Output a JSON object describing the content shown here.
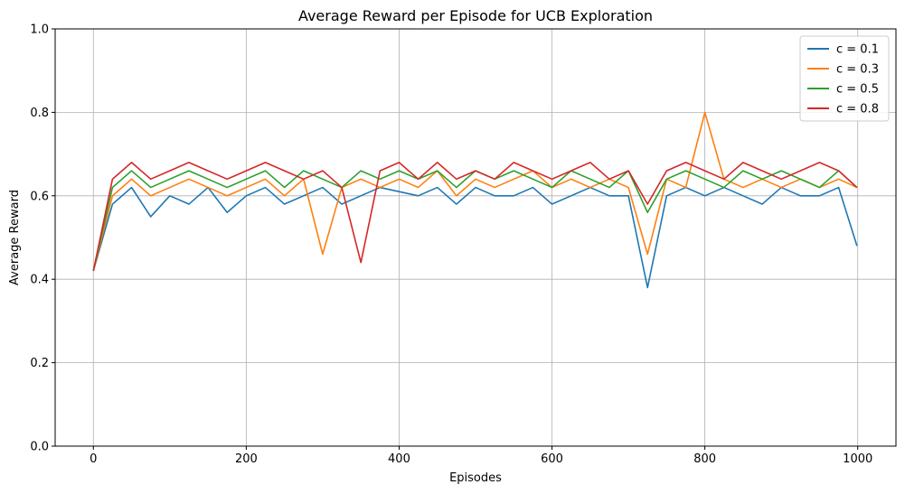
{
  "chart_data": {
    "type": "line",
    "title": "Average Reward per Episode for UCB Exploration",
    "xlabel": "Episodes",
    "ylabel": "Average Reward",
    "xlim": [
      -50,
      1050
    ],
    "ylim": [
      0,
      1.0
    ],
    "x_ticks": [
      0,
      200,
      400,
      600,
      800,
      1000
    ],
    "y_ticks": [
      0.0,
      0.2,
      0.4,
      0.6,
      0.8,
      1.0
    ],
    "x_tick_labels": [
      "0",
      "200",
      "400",
      "600",
      "800",
      "1000"
    ],
    "y_tick_labels": [
      "0.0",
      "0.2",
      "0.4",
      "0.6",
      "0.8",
      "1.0"
    ],
    "grid": true,
    "legend_position": "top-right",
    "x": [
      0,
      25,
      50,
      75,
      100,
      125,
      150,
      175,
      200,
      225,
      250,
      275,
      300,
      325,
      350,
      375,
      400,
      425,
      450,
      475,
      500,
      525,
      550,
      575,
      600,
      625,
      650,
      675,
      700,
      725,
      750,
      775,
      800,
      825,
      850,
      875,
      900,
      925,
      950,
      975,
      999
    ],
    "series": [
      {
        "name": "c = 0.1",
        "color": "#1f77b4",
        "values": [
          0.42,
          0.58,
          0.62,
          0.55,
          0.6,
          0.58,
          0.62,
          0.56,
          0.6,
          0.62,
          0.58,
          0.6,
          0.62,
          0.58,
          0.6,
          0.62,
          0.61,
          0.6,
          0.62,
          0.58,
          0.62,
          0.6,
          0.6,
          0.62,
          0.58,
          0.6,
          0.62,
          0.6,
          0.6,
          0.38,
          0.6,
          0.62,
          0.6,
          0.62,
          0.6,
          0.58,
          0.62,
          0.6,
          0.6,
          0.62,
          0.48
        ]
      },
      {
        "name": "c = 0.3",
        "color": "#ff7f0e",
        "values": [
          0.42,
          0.6,
          0.64,
          0.6,
          0.62,
          0.64,
          0.62,
          0.6,
          0.62,
          0.64,
          0.6,
          0.64,
          0.46,
          0.62,
          0.64,
          0.62,
          0.64,
          0.62,
          0.66,
          0.6,
          0.64,
          0.62,
          0.64,
          0.66,
          0.62,
          0.64,
          0.62,
          0.64,
          0.62,
          0.46,
          0.64,
          0.62,
          0.8,
          0.64,
          0.62,
          0.64,
          0.62,
          0.64,
          0.62,
          0.64,
          0.62
        ]
      },
      {
        "name": "c = 0.5",
        "color": "#2ca02c",
        "values": [
          0.42,
          0.62,
          0.66,
          0.62,
          0.64,
          0.66,
          0.64,
          0.62,
          0.64,
          0.66,
          0.62,
          0.66,
          0.64,
          0.62,
          0.66,
          0.64,
          0.66,
          0.64,
          0.66,
          0.62,
          0.66,
          0.64,
          0.66,
          0.64,
          0.62,
          0.66,
          0.64,
          0.62,
          0.66,
          0.56,
          0.64,
          0.66,
          0.64,
          0.62,
          0.66,
          0.64,
          0.66,
          0.64,
          0.62,
          0.66,
          0.62
        ]
      },
      {
        "name": "c = 0.8",
        "color": "#d62728",
        "values": [
          0.42,
          0.64,
          0.68,
          0.64,
          0.66,
          0.68,
          0.66,
          0.64,
          0.66,
          0.68,
          0.66,
          0.64,
          0.66,
          0.62,
          0.44,
          0.66,
          0.68,
          0.64,
          0.68,
          0.64,
          0.66,
          0.64,
          0.68,
          0.66,
          0.64,
          0.66,
          0.68,
          0.64,
          0.66,
          0.58,
          0.66,
          0.68,
          0.66,
          0.64,
          0.68,
          0.66,
          0.64,
          0.66,
          0.68,
          0.66,
          0.62
        ]
      }
    ]
  }
}
